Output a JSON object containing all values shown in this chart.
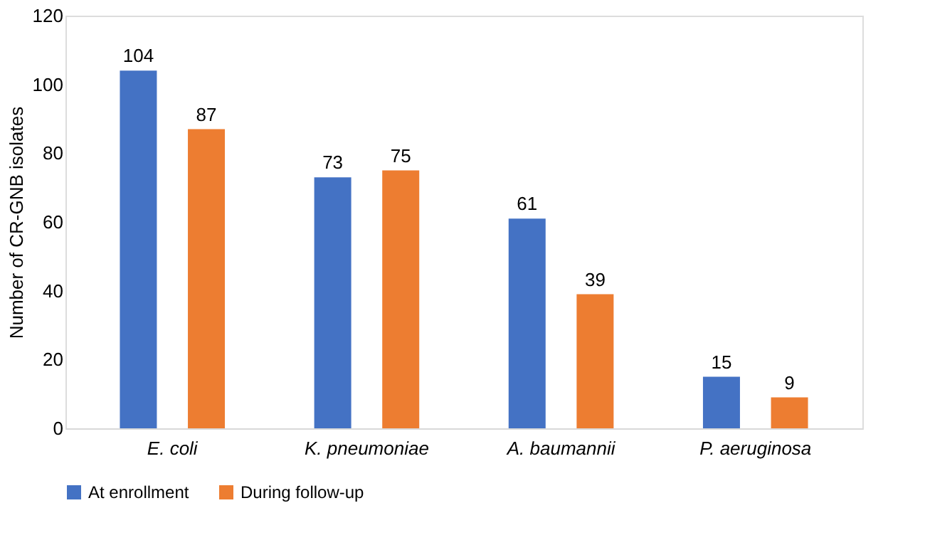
{
  "chart_data": {
    "type": "bar",
    "ylabel": "Number of CR-GNB isolates",
    "categories": [
      "E. coli",
      "K. pneumoniae",
      "A. baumannii",
      "P. aeruginosa"
    ],
    "series": [
      {
        "name": "At enrollment",
        "color": "#4472c4",
        "values": [
          104,
          73,
          61,
          15
        ]
      },
      {
        "name": "During follow-up",
        "color": "#ed7d31",
        "values": [
          87,
          75,
          39,
          9
        ]
      }
    ],
    "ylim": [
      0,
      120
    ],
    "yticks": [
      0,
      20,
      40,
      60,
      80,
      100,
      120
    ],
    "grid": false,
    "legend": "bottom",
    "data_labels": true
  }
}
